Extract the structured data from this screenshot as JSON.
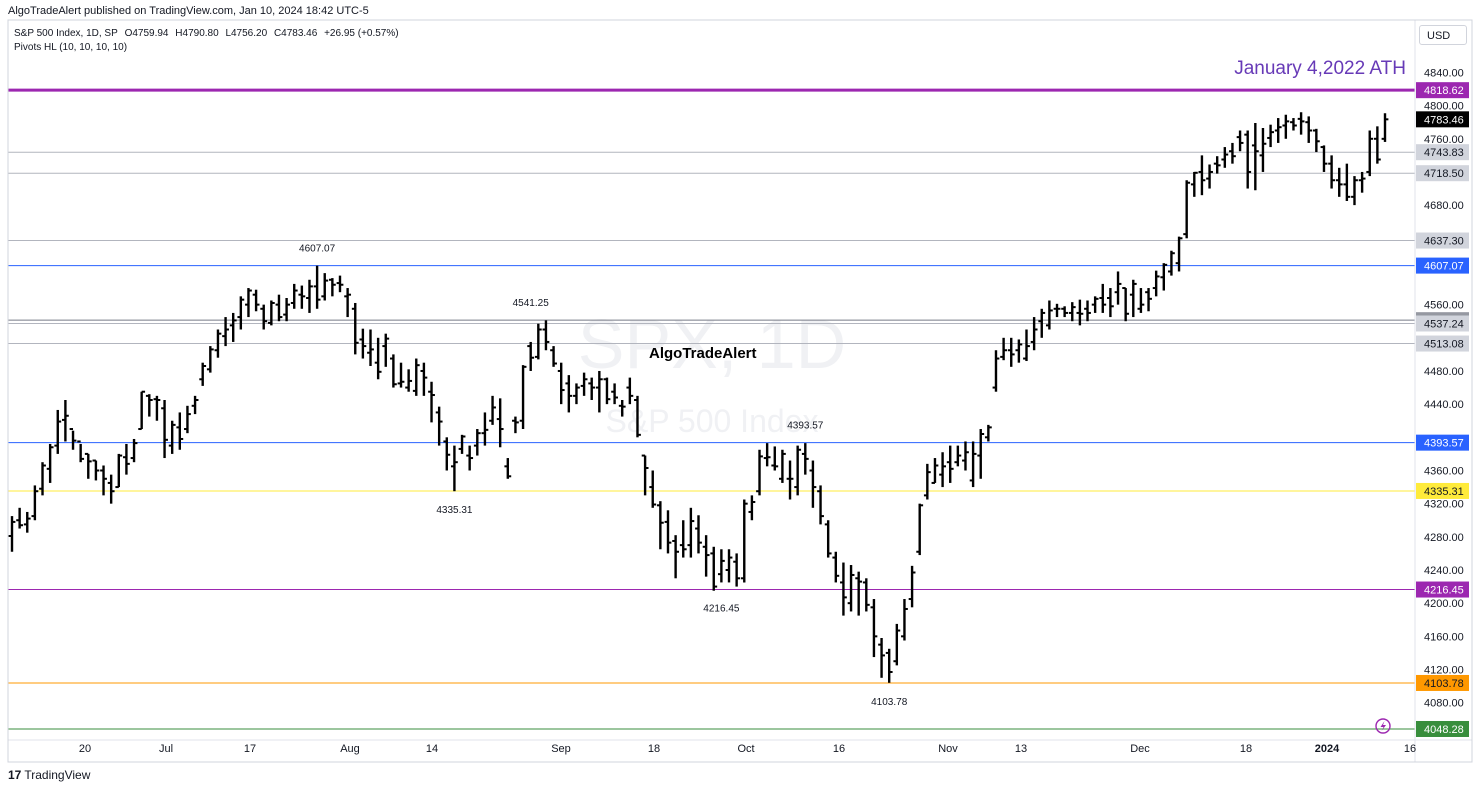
{
  "header": {
    "publisher": "AlgoTradeAlert published on TradingView.com, Jan 10, 2024 18:42 UTC-5",
    "symbol": "S&P 500 Index, 1D, SP",
    "open": "O4759.94",
    "high": "H4790.80",
    "low": "L4756.20",
    "close": "C4783.46",
    "change": "+26.95 (+0.57%)",
    "indicator": "Pivots HL (10, 10, 10, 10)",
    "currency": "USD"
  },
  "watermark": {
    "symbol": "SPX, 1D",
    "name": "S&P 500 Index"
  },
  "footer": {
    "logo_text": "TradingView",
    "logo_mark": "17"
  },
  "icons": {
    "flash": "lightning-icon"
  },
  "chart_data": {
    "type": "bar",
    "ohlc_style": "ohlc-bars",
    "y_axis": {
      "range": [
        4035,
        4855
      ],
      "ticks": [
        4840.0,
        4800.0,
        4760.0,
        4680.0,
        4560.0,
        4480.0,
        4440.0,
        4360.0,
        4320.0,
        4280.0,
        4240.0,
        4200.0,
        4160.0,
        4120.0,
        4080.0
      ]
    },
    "x_axis": {
      "ticks": [
        "20",
        "Jul",
        "17",
        "Aug",
        "14",
        "Sep",
        "18",
        "Oct",
        "16",
        "Nov",
        "13",
        "Dec",
        "18",
        "2024",
        "16"
      ],
      "bold_ticks": [
        "2024"
      ]
    },
    "price_label": {
      "value": "4783.46",
      "color": "#000000"
    },
    "horizontal_levels": [
      {
        "value": 4818.62,
        "label": "4818.62",
        "color": "#9c27b0",
        "width": 3
      },
      {
        "value": 4743.83,
        "label": "4743.83",
        "color": "#b2b5be",
        "width": 1
      },
      {
        "value": 4718.5,
        "label": "4718.50",
        "color": "#b2b5be",
        "width": 1
      },
      {
        "value": 4637.3,
        "label": "4637.30",
        "color": "#b2b5be",
        "width": 1
      },
      {
        "value": 4607.07,
        "label": "4607.07",
        "color": "#2962ff",
        "width": 1
      },
      {
        "value": 4541.25,
        "label": "4541.25",
        "color": "#787b86",
        "width": 1
      },
      {
        "value": 4537.24,
        "label": "4537.24",
        "color": "#b2b5be",
        "width": 1
      },
      {
        "value": 4513.08,
        "label": "4513.08",
        "color": "#b2b5be",
        "width": 1
      },
      {
        "value": 4393.57,
        "label": "4393.57",
        "color": "#2962ff",
        "width": 1
      },
      {
        "value": 4335.31,
        "label": "4335.31",
        "color": "#ffeb3b",
        "width": 1
      },
      {
        "value": 4216.45,
        "label": "4216.45",
        "color": "#9c27b0",
        "width": 1
      },
      {
        "value": 4103.78,
        "label": "4103.78",
        "color": "#ff9800",
        "width": 1
      },
      {
        "value": 4048.28,
        "label": "4048.28",
        "color": "#388e3c",
        "width": 1
      }
    ],
    "pivot_labels": [
      {
        "text": "4607.07",
        "bar": 40,
        "value": 4607.07,
        "pos": "above"
      },
      {
        "text": "4541.25",
        "bar": 68,
        "value": 4541.25,
        "pos": "above"
      },
      {
        "text": "4335.31",
        "bar": 58,
        "value": 4335.31,
        "pos": "below"
      },
      {
        "text": "4393.57",
        "bar": 104,
        "value": 4393.57,
        "pos": "above"
      },
      {
        "text": "4216.45",
        "bar": 93,
        "value": 4216.45,
        "pos": "below"
      },
      {
        "text": "4103.78",
        "bar": 115,
        "value": 4103.78,
        "pos": "below"
      }
    ],
    "annotations": [
      {
        "text": "January 4,2022 ATH",
        "color": "#673ab7",
        "anchor": "top-right-level"
      },
      {
        "text": "AlgoTradeAlert",
        "color": "#000000",
        "anchor": "center-upper"
      }
    ],
    "bars": [
      [
        4281,
        4305,
        4262,
        4298
      ],
      [
        4300,
        4315,
        4290,
        4294
      ],
      [
        4295,
        4310,
        4285,
        4302
      ],
      [
        4305,
        4342,
        4300,
        4335
      ],
      [
        4338,
        4370,
        4330,
        4366
      ],
      [
        4362,
        4392,
        4345,
        4388
      ],
      [
        4390,
        4433,
        4380,
        4419
      ],
      [
        4421,
        4445,
        4395,
        4426
      ],
      [
        4410,
        4408,
        4385,
        4396
      ],
      [
        4395,
        4392,
        4370,
        4374
      ],
      [
        4380,
        4380,
        4350,
        4371
      ],
      [
        4372,
        4372,
        4348,
        4360
      ],
      [
        4360,
        4366,
        4330,
        4350
      ],
      [
        4345,
        4355,
        4320,
        4335
      ],
      [
        4340,
        4380,
        4340,
        4378
      ],
      [
        4376,
        4392,
        4355,
        4368
      ],
      [
        4375,
        4398,
        4370,
        4393
      ],
      [
        4410,
        4455,
        4410,
        4455
      ],
      [
        4450,
        4452,
        4425,
        4445
      ],
      [
        4446,
        4450,
        4420,
        4445
      ],
      [
        4435,
        4445,
        4375,
        4397
      ],
      [
        4390,
        4420,
        4380,
        4415
      ],
      [
        4412,
        4430,
        4385,
        4398
      ],
      [
        4410,
        4438,
        4405,
        4428
      ],
      [
        4438,
        4450,
        4428,
        4445
      ],
      [
        4470,
        4490,
        4462,
        4486
      ],
      [
        4482,
        4510,
        4478,
        4506
      ],
      [
        4505,
        4530,
        4496,
        4525
      ],
      [
        4522,
        4545,
        4510,
        4530
      ],
      [
        4535,
        4550,
        4515,
        4541
      ],
      [
        4545,
        4570,
        4530,
        4566
      ],
      [
        4560,
        4580,
        4545,
        4577
      ],
      [
        4572,
        4578,
        4552,
        4560
      ],
      [
        4555,
        4560,
        4530,
        4540
      ],
      [
        4538,
        4565,
        4535,
        4562
      ],
      [
        4560,
        4572,
        4540,
        4545
      ],
      [
        4548,
        4568,
        4540,
        4560
      ],
      [
        4562,
        4585,
        4555,
        4577
      ],
      [
        4572,
        4583,
        4555,
        4570
      ],
      [
        4568,
        4590,
        4550,
        4582
      ],
      [
        4582,
        4607,
        4555,
        4566
      ],
      [
        4570,
        4598,
        4565,
        4589
      ],
      [
        4590,
        4592,
        4570,
        4584
      ],
      [
        4586,
        4595,
        4575,
        4584
      ],
      [
        4570,
        4580,
        4545,
        4572
      ],
      [
        4555,
        4562,
        4500,
        4514
      ],
      [
        4518,
        4531,
        4495,
        4510
      ],
      [
        4502,
        4530,
        4486,
        4506
      ],
      [
        4490,
        4520,
        4470,
        4479
      ],
      [
        4510,
        4525,
        4485,
        4519
      ],
      [
        4495,
        4500,
        4460,
        4464
      ],
      [
        4465,
        4490,
        4460,
        4467
      ],
      [
        4460,
        4482,
        4455,
        4468
      ],
      [
        4456,
        4495,
        4450,
        4487
      ],
      [
        4480,
        4490,
        4450,
        4472
      ],
      [
        4455,
        4467,
        4418,
        4451
      ],
      [
        4430,
        4437,
        4390,
        4419
      ],
      [
        4395,
        4400,
        4360,
        4379
      ],
      [
        4365,
        4390,
        4335,
        4370
      ],
      [
        4386,
        4403,
        4380,
        4401
      ],
      [
        4378,
        4390,
        4360,
        4375
      ],
      [
        4390,
        4410,
        4378,
        4405
      ],
      [
        4405,
        4430,
        4390,
        4409
      ],
      [
        4420,
        4450,
        4415,
        4436
      ],
      [
        4422,
        4447,
        4388,
        4410
      ],
      [
        4365,
        4375,
        4350,
        4353
      ],
      [
        4420,
        4425,
        4405,
        4418
      ],
      [
        4420,
        4487,
        4410,
        4485
      ],
      [
        4510,
        4515,
        4480,
        4496
      ],
      [
        4497,
        4537,
        4494,
        4530
      ],
      [
        4530,
        4541,
        4505,
        4515
      ],
      [
        4505,
        4510,
        4485,
        4489
      ],
      [
        4480,
        4490,
        4440,
        4457
      ],
      [
        4465,
        4475,
        4430,
        4450
      ],
      [
        4450,
        4465,
        4440,
        4460
      ],
      [
        4462,
        4478,
        4450,
        4470
      ],
      [
        4465,
        4472,
        4445,
        4460
      ],
      [
        4460,
        4480,
        4430,
        4470
      ],
      [
        4470,
        4472,
        4440,
        4446
      ],
      [
        4455,
        4465,
        4440,
        4448
      ],
      [
        4438,
        4445,
        4425,
        4437
      ],
      [
        4460,
        4472,
        4440,
        4450
      ],
      [
        4445,
        4450,
        4400,
        4403
      ],
      [
        4378,
        4378,
        4330,
        4363
      ],
      [
        4340,
        4360,
        4315,
        4319
      ],
      [
        4318,
        4323,
        4265,
        4297
      ],
      [
        4298,
        4312,
        4260,
        4273
      ],
      [
        4275,
        4282,
        4230,
        4262
      ],
      [
        4270,
        4300,
        4255,
        4265
      ],
      [
        4270,
        4315,
        4255,
        4299
      ],
      [
        4290,
        4306,
        4260,
        4273
      ],
      [
        4268,
        4282,
        4232,
        4258
      ],
      [
        4260,
        4268,
        4215,
        4220
      ],
      [
        4235,
        4265,
        4225,
        4251
      ],
      [
        4240,
        4265,
        4225,
        4255
      ],
      [
        4250,
        4260,
        4220,
        4230
      ],
      [
        4230,
        4325,
        4225,
        4320
      ],
      [
        4310,
        4330,
        4300,
        4322
      ],
      [
        4335,
        4385,
        4330,
        4377
      ],
      [
        4375,
        4393,
        4365,
        4376
      ],
      [
        4366,
        4389,
        4360,
        4365
      ],
      [
        4350,
        4385,
        4345,
        4380
      ],
      [
        4350,
        4372,
        4325,
        4350
      ],
      [
        4340,
        4390,
        4330,
        4385
      ],
      [
        4380,
        4393,
        4355,
        4374
      ],
      [
        4360,
        4372,
        4315,
        4340
      ],
      [
        4335,
        4342,
        4295,
        4305
      ],
      [
        4295,
        4300,
        4255,
        4260
      ],
      [
        4255,
        4262,
        4225,
        4233
      ],
      [
        4225,
        4249,
        4185,
        4207
      ],
      [
        4200,
        4246,
        4190,
        4234
      ],
      [
        4230,
        4238,
        4185,
        4226
      ],
      [
        4225,
        4230,
        4190,
        4198
      ],
      [
        4195,
        4205,
        4135,
        4160
      ],
      [
        4150,
        4158,
        4110,
        4137
      ],
      [
        4140,
        4145,
        4104,
        4117
      ],
      [
        4130,
        4175,
        4125,
        4167
      ],
      [
        4160,
        4205,
        4155,
        4193
      ],
      [
        4205,
        4245,
        4195,
        4237
      ],
      [
        4262,
        4320,
        4258,
        4318
      ],
      [
        4330,
        4368,
        4325,
        4358
      ],
      [
        4345,
        4375,
        4345,
        4366
      ],
      [
        4355,
        4382,
        4340,
        4365
      ],
      [
        4370,
        4390,
        4345,
        4362
      ],
      [
        4370,
        4390,
        4365,
        4378
      ],
      [
        4372,
        4395,
        4360,
        4382
      ],
      [
        4348,
        4395,
        4340,
        4380
      ],
      [
        4378,
        4410,
        4350,
        4404
      ],
      [
        4400,
        4415,
        4395,
        4412
      ],
      [
        4460,
        4505,
        4455,
        4495
      ],
      [
        4497,
        4520,
        4493,
        4505
      ],
      [
        4505,
        4520,
        4485,
        4500
      ],
      [
        4505,
        4518,
        4490,
        4512
      ],
      [
        4495,
        4530,
        4492,
        4510
      ],
      [
        4515,
        4545,
        4505,
        4530
      ],
      [
        4540,
        4555,
        4520,
        4550
      ],
      [
        4535,
        4565,
        4530,
        4553
      ],
      [
        4555,
        4561,
        4545,
        4555
      ],
      [
        4555,
        4558,
        4545,
        4550
      ],
      [
        4550,
        4563,
        4540,
        4557
      ],
      [
        4550,
        4566,
        4535,
        4549
      ],
      [
        4555,
        4565,
        4540,
        4550
      ],
      [
        4560,
        4570,
        4550,
        4567
      ],
      [
        4568,
        4585,
        4550,
        4560
      ],
      [
        4568,
        4580,
        4545,
        4558
      ],
      [
        4575,
        4600,
        4560,
        4585
      ],
      [
        4580,
        4580,
        4540,
        4549
      ],
      [
        4572,
        4590,
        4545,
        4585
      ],
      [
        4555,
        4580,
        4550,
        4560
      ],
      [
        4575,
        4580,
        4552,
        4567
      ],
      [
        4580,
        4601,
        4570,
        4594
      ],
      [
        4593,
        4610,
        4577,
        4608
      ],
      [
        4600,
        4625,
        4595,
        4622
      ],
      [
        4610,
        4642,
        4600,
        4640
      ],
      [
        4645,
        4710,
        4640,
        4707
      ],
      [
        4705,
        4720,
        4690,
        4719
      ],
      [
        4720,
        4740,
        4692,
        4710
      ],
      [
        4712,
        4729,
        4700,
        4720
      ],
      [
        4730,
        4739,
        4718,
        4728
      ],
      [
        4735,
        4750,
        4725,
        4741
      ],
      [
        4745,
        4755,
        4730,
        4739
      ],
      [
        4762,
        4770,
        4745,
        4755
      ],
      [
        4765,
        4770,
        4700,
        4720
      ],
      [
        4752,
        4779,
        4698,
        4745
      ],
      [
        4740,
        4773,
        4720,
        4754
      ],
      [
        4761,
        4777,
        4750,
        4768
      ],
      [
        4770,
        4785,
        4755,
        4774
      ],
      [
        4776,
        4789,
        4760,
        4781
      ],
      [
        4780,
        4785,
        4770,
        4776
      ],
      [
        4784,
        4792,
        4765,
        4781
      ],
      [
        4780,
        4787,
        4755,
        4770
      ],
      [
        4770,
        4772,
        4744,
        4757
      ],
      [
        4750,
        4752,
        4720,
        4730
      ],
      [
        4730,
        4740,
        4700,
        4710
      ],
      [
        4710,
        4725,
        4690,
        4705
      ],
      [
        4705,
        4730,
        4685,
        4690
      ],
      [
        4690,
        4715,
        4680,
        4710
      ],
      [
        4710,
        4720,
        4695,
        4712
      ],
      [
        4720,
        4770,
        4715,
        4760
      ],
      [
        4760,
        4775,
        4730,
        4735
      ],
      [
        4759.94,
        4790.8,
        4756.2,
        4783.46
      ]
    ]
  }
}
